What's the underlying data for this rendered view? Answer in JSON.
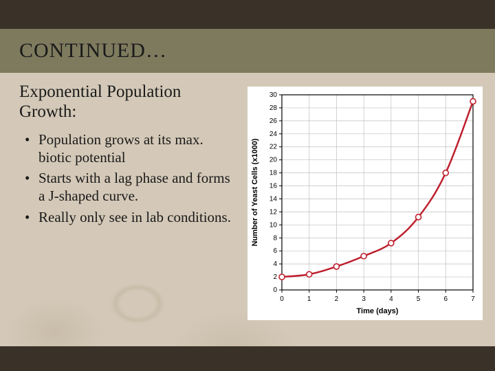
{
  "title": "CONTINUED…",
  "subtitle": "Exponential Population Growth:",
  "bullets": [
    "Population grows at its max. biotic potential",
    "Starts with a lag phase and forms a J-shaped curve.",
    "Really only see in lab conditions."
  ],
  "chart": {
    "type": "line",
    "xlabel": "Time (days)",
    "ylabel": "Number of Yeast Cells (x1000)",
    "xlim": [
      0,
      7
    ],
    "ylim": [
      0,
      30
    ],
    "xtick_step": 1,
    "ytick_step": 2,
    "line_color": "#bf1f2e",
    "line_width": 2.5,
    "marker_fill": "#ffffff",
    "marker_stroke": "#bf1f2e",
    "marker_radius": 4,
    "grid_color": "#bfbfbf",
    "axis_color": "#000000",
    "background_color": "#ffffff",
    "tick_fontsize": 10,
    "label_fontsize": 11,
    "data_x": [
      0,
      1,
      2,
      3,
      4,
      5,
      6,
      7
    ],
    "data_y": [
      2,
      2.4,
      3.6,
      5.2,
      7.2,
      11.2,
      18.0,
      29.0
    ]
  },
  "colors": {
    "header_bar": "#3a3228",
    "title_bar": "#7d7a5e",
    "slide_bg": "#d4c9b8",
    "text": "#1a1a1a"
  }
}
